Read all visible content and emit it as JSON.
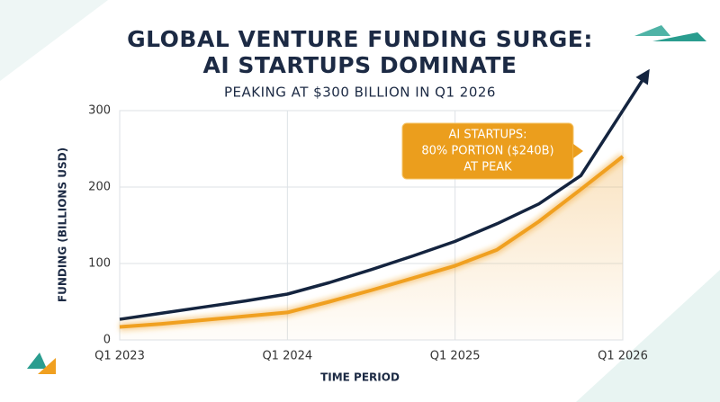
{
  "chart_data": {
    "type": "line",
    "title": [
      "GLOBAL VENTURE FUNDING SURGE:",
      "AI STARTUPS DOMINATE"
    ],
    "subtitle": "PEAKING AT $300 BILLION IN Q1 2026",
    "y_label": "FUNDING (BILLIONS USD)",
    "x_label": "TIME PERIOD",
    "annotation": [
      "AI STARTUPS:",
      "80% PORTION ($240B)",
      "AT PEAK"
    ],
    "categories": [
      "Q1 2023",
      null,
      null,
      null,
      "Q1 2024",
      null,
      null,
      null,
      "Q1 2025",
      null,
      null,
      null,
      "Q1 2026"
    ],
    "series": [
      {
        "color": "#14243f",
        "values": [
          27,
          35,
          43,
          51,
          60,
          75,
          92,
          110,
          129,
          152,
          178,
          215,
          300
        ]
      },
      {
        "color": "#f0a020",
        "values": [
          17,
          21,
          26,
          31,
          36,
          50,
          65,
          81,
          97,
          118,
          155,
          197,
          240
        ]
      }
    ],
    "ylim": [
      0,
      300
    ],
    "yticks": [
      0,
      100,
      200,
      300
    ],
    "grid": true
  }
}
